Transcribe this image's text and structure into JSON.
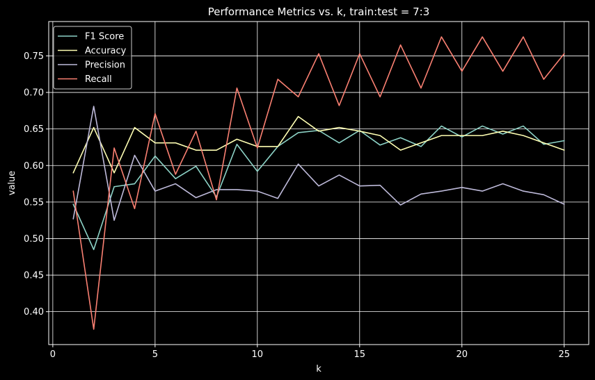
{
  "chart_data": {
    "type": "line",
    "title": "Performance Metrics vs. k, train:test = 7:3",
    "xlabel": "k",
    "ylabel": "value",
    "xlim": [
      -0.2,
      26.2
    ],
    "ylim": [
      0.355,
      0.797
    ],
    "xticks": [
      0,
      5,
      10,
      15,
      20,
      25
    ],
    "xtick_labels": [
      "0",
      "5",
      "10",
      "15",
      "20",
      "25"
    ],
    "yticks": [
      0.4,
      0.45,
      0.5,
      0.55,
      0.6,
      0.65,
      0.7,
      0.75
    ],
    "ytick_labels": [
      "0.40",
      "0.45",
      "0.50",
      "0.55",
      "0.60",
      "0.65",
      "0.70",
      "0.75"
    ],
    "grid": true,
    "legend_position": "top-left",
    "background": "#000000",
    "foreground": "#ffffff",
    "x": [
      1,
      2,
      3,
      4,
      5,
      6,
      7,
      8,
      9,
      10,
      11,
      12,
      13,
      14,
      15,
      16,
      17,
      18,
      19,
      20,
      21,
      22,
      23,
      24,
      25
    ],
    "series": [
      {
        "name": "F1 Score",
        "color": "#8dd3c7",
        "values": [
          0.547,
          0.485,
          0.571,
          0.575,
          0.613,
          0.582,
          0.599,
          0.557,
          0.629,
          0.592,
          0.626,
          0.645,
          0.648,
          0.631,
          0.648,
          0.628,
          0.638,
          0.626,
          0.654,
          0.639,
          0.654,
          0.643,
          0.654,
          0.629,
          0.634
        ]
      },
      {
        "name": "Accuracy",
        "color": "#ffffb3",
        "values": [
          0.59,
          0.652,
          0.59,
          0.652,
          0.631,
          0.631,
          0.621,
          0.621,
          0.636,
          0.626,
          0.626,
          0.667,
          0.647,
          0.652,
          0.647,
          0.641,
          0.621,
          0.631,
          0.641,
          0.641,
          0.641,
          0.647,
          0.641,
          0.631,
          0.621
        ]
      },
      {
        "name": "Precision",
        "color": "#bebada",
        "values": [
          0.527,
          0.681,
          0.525,
          0.614,
          0.565,
          0.575,
          0.556,
          0.567,
          0.567,
          0.565,
          0.555,
          0.602,
          0.572,
          0.587,
          0.572,
          0.573,
          0.546,
          0.561,
          0.565,
          0.57,
          0.565,
          0.575,
          0.565,
          0.56,
          0.547
        ]
      },
      {
        "name": "Recall",
        "color": "#fa8072",
        "values": [
          0.565,
          0.376,
          0.624,
          0.541,
          0.671,
          0.588,
          0.647,
          0.553,
          0.706,
          0.624,
          0.718,
          0.694,
          0.753,
          0.682,
          0.753,
          0.694,
          0.765,
          0.706,
          0.776,
          0.729,
          0.776,
          0.729,
          0.776,
          0.718,
          0.753
        ]
      }
    ]
  }
}
